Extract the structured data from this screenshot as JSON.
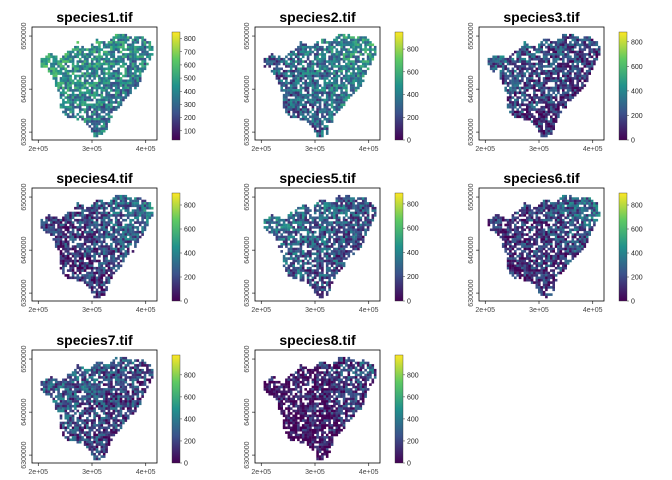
{
  "figure": {
    "xaxis_ticks": [
      "2e+05",
      "3e+05",
      "4e+05"
    ],
    "yaxis_ticks": [
      "6300000",
      "6400000",
      "6500000"
    ],
    "colormap": [
      "#440154",
      "#3b528b",
      "#21918c",
      "#5ec962",
      "#fde725"
    ]
  },
  "chart_data": [
    {
      "type": "heatmap",
      "title": "species1.tif",
      "legend_ticks": [
        "100",
        "200",
        "300",
        "400",
        "500",
        "600",
        "700",
        "800"
      ],
      "legend_range": [
        30,
        850
      ],
      "mean_level": 0.45
    },
    {
      "type": "heatmap",
      "title": "species2.tif",
      "legend_ticks": [
        "0",
        "200",
        "400",
        "600",
        "800"
      ],
      "legend_range": [
        0,
        950
      ],
      "mean_level": 0.35
    },
    {
      "type": "heatmap",
      "title": "species3.tif",
      "legend_ticks": [
        "0",
        "200",
        "400",
        "600",
        "800"
      ],
      "legend_range": [
        0,
        880
      ],
      "mean_level": 0.2
    },
    {
      "type": "heatmap",
      "title": "species4.tif",
      "legend_ticks": [
        "0",
        "200",
        "400",
        "600",
        "800"
      ],
      "legend_range": [
        0,
        900
      ],
      "mean_level": 0.2
    },
    {
      "type": "heatmap",
      "title": "species5.tif",
      "legend_ticks": [
        "0",
        "200",
        "400",
        "600",
        "800"
      ],
      "legend_range": [
        0,
        890
      ],
      "mean_level": 0.28
    },
    {
      "type": "heatmap",
      "title": "species6.tif",
      "legend_ticks": [
        "0",
        "200",
        "400",
        "600",
        "800"
      ],
      "legend_range": [
        0,
        900
      ],
      "mean_level": 0.18
    },
    {
      "type": "heatmap",
      "title": "species7.tif",
      "legend_ticks": [
        "0",
        "200",
        "400",
        "600",
        "800"
      ],
      "legend_range": [
        0,
        980
      ],
      "mean_level": 0.22
    },
    {
      "type": "heatmap",
      "title": "species8.tif",
      "legend_ticks": [
        "0",
        "200",
        "400",
        "600",
        "800"
      ],
      "legend_range": [
        0,
        980
      ],
      "mean_level": 0.08
    }
  ]
}
